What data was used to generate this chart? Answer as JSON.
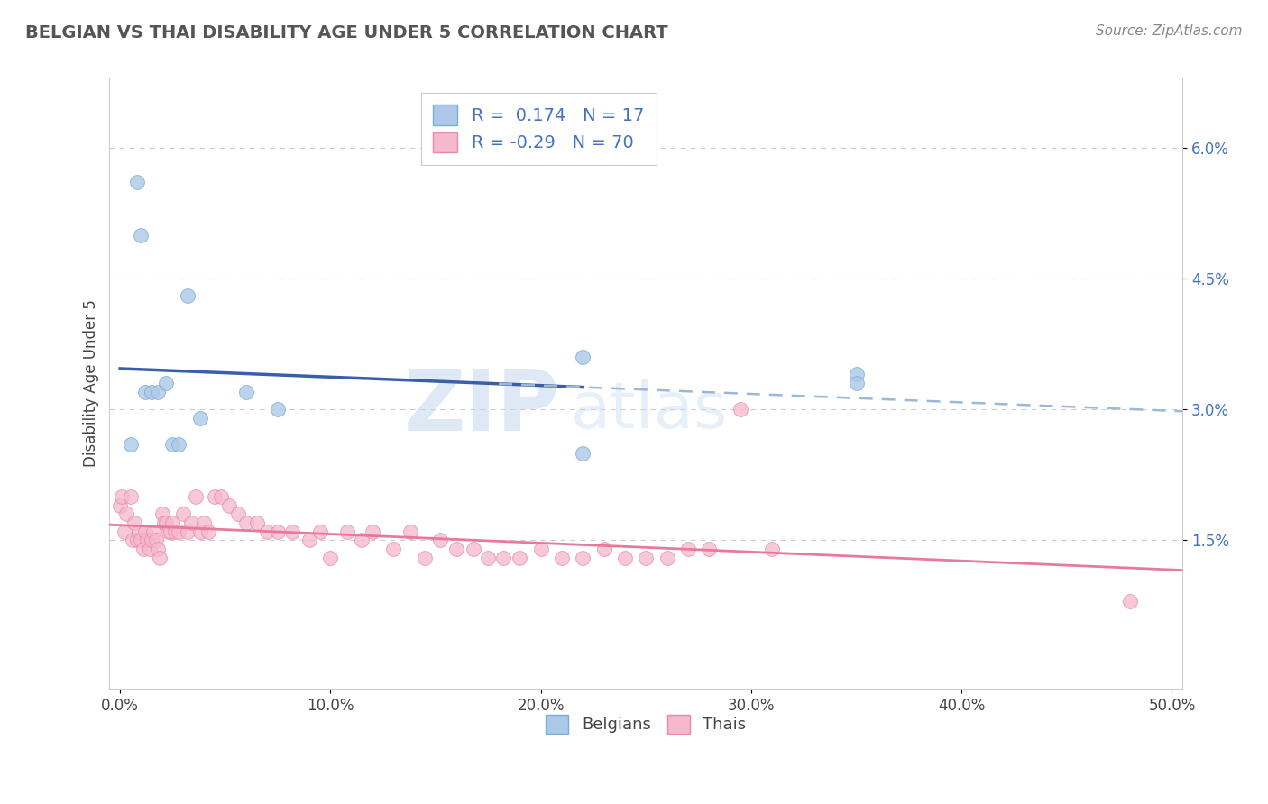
{
  "title": "BELGIAN VS THAI DISABILITY AGE UNDER 5 CORRELATION CHART",
  "source": "Source: ZipAtlas.com",
  "ylabel": "Disability Age Under 5",
  "xlim": [
    -0.005,
    0.505
  ],
  "ylim": [
    -0.002,
    0.068
  ],
  "yticks": [
    0.015,
    0.03,
    0.045,
    0.06
  ],
  "ytick_labels": [
    "1.5%",
    "3.0%",
    "4.5%",
    "6.0%"
  ],
  "xticks": [
    0.0,
    0.1,
    0.2,
    0.3,
    0.4,
    0.5
  ],
  "xtick_labels": [
    "0.0%",
    "10.0%",
    "20.0%",
    "30.0%",
    "40.0%",
    "50.0%"
  ],
  "belgian_color": "#adc8e8",
  "thai_color": "#f5b8cc",
  "belgian_edge": "#7aafd4",
  "thai_edge": "#e88aa8",
  "trend_belgian_color": "#3a5fa8",
  "trend_thai_color": "#e8799a",
  "trend_belgian_dashed_color": "#9ab8d8",
  "R_belgian": 0.174,
  "N_belgian": 17,
  "R_thai": -0.29,
  "N_thai": 70,
  "background_color": "#ffffff",
  "grid_color": "#cccccc",
  "watermark_zip": "ZIP",
  "watermark_atlas": "atlas",
  "belgian_points_x": [
    0.005,
    0.008,
    0.01,
    0.012,
    0.015,
    0.018,
    0.022,
    0.025,
    0.028,
    0.032,
    0.038,
    0.06,
    0.075,
    0.22,
    0.22,
    0.35,
    0.35
  ],
  "belgian_points_y": [
    0.026,
    0.056,
    0.05,
    0.032,
    0.032,
    0.032,
    0.033,
    0.026,
    0.026,
    0.043,
    0.029,
    0.032,
    0.03,
    0.036,
    0.025,
    0.034,
    0.033
  ],
  "thai_points_x": [
    0.0,
    0.001,
    0.002,
    0.003,
    0.005,
    0.006,
    0.007,
    0.008,
    0.009,
    0.01,
    0.011,
    0.012,
    0.013,
    0.014,
    0.015,
    0.016,
    0.017,
    0.018,
    0.019,
    0.02,
    0.021,
    0.022,
    0.023,
    0.024,
    0.025,
    0.026,
    0.028,
    0.03,
    0.032,
    0.034,
    0.036,
    0.038,
    0.04,
    0.042,
    0.045,
    0.048,
    0.052,
    0.056,
    0.06,
    0.065,
    0.07,
    0.075,
    0.082,
    0.09,
    0.095,
    0.1,
    0.108,
    0.115,
    0.12,
    0.13,
    0.138,
    0.145,
    0.152,
    0.16,
    0.168,
    0.175,
    0.182,
    0.19,
    0.2,
    0.21,
    0.22,
    0.23,
    0.24,
    0.25,
    0.26,
    0.27,
    0.28,
    0.295,
    0.31,
    0.48
  ],
  "thai_points_y": [
    0.019,
    0.02,
    0.016,
    0.018,
    0.02,
    0.015,
    0.017,
    0.015,
    0.016,
    0.015,
    0.014,
    0.016,
    0.015,
    0.014,
    0.015,
    0.016,
    0.015,
    0.014,
    0.013,
    0.018,
    0.017,
    0.017,
    0.016,
    0.016,
    0.017,
    0.016,
    0.016,
    0.018,
    0.016,
    0.017,
    0.02,
    0.016,
    0.017,
    0.016,
    0.02,
    0.02,
    0.019,
    0.018,
    0.017,
    0.017,
    0.016,
    0.016,
    0.016,
    0.015,
    0.016,
    0.013,
    0.016,
    0.015,
    0.016,
    0.014,
    0.016,
    0.013,
    0.015,
    0.014,
    0.014,
    0.013,
    0.013,
    0.013,
    0.014,
    0.013,
    0.013,
    0.014,
    0.013,
    0.013,
    0.013,
    0.014,
    0.014,
    0.03,
    0.014,
    0.008
  ],
  "legend_label_belgian": "Belgians",
  "legend_label_thai": "Thais"
}
